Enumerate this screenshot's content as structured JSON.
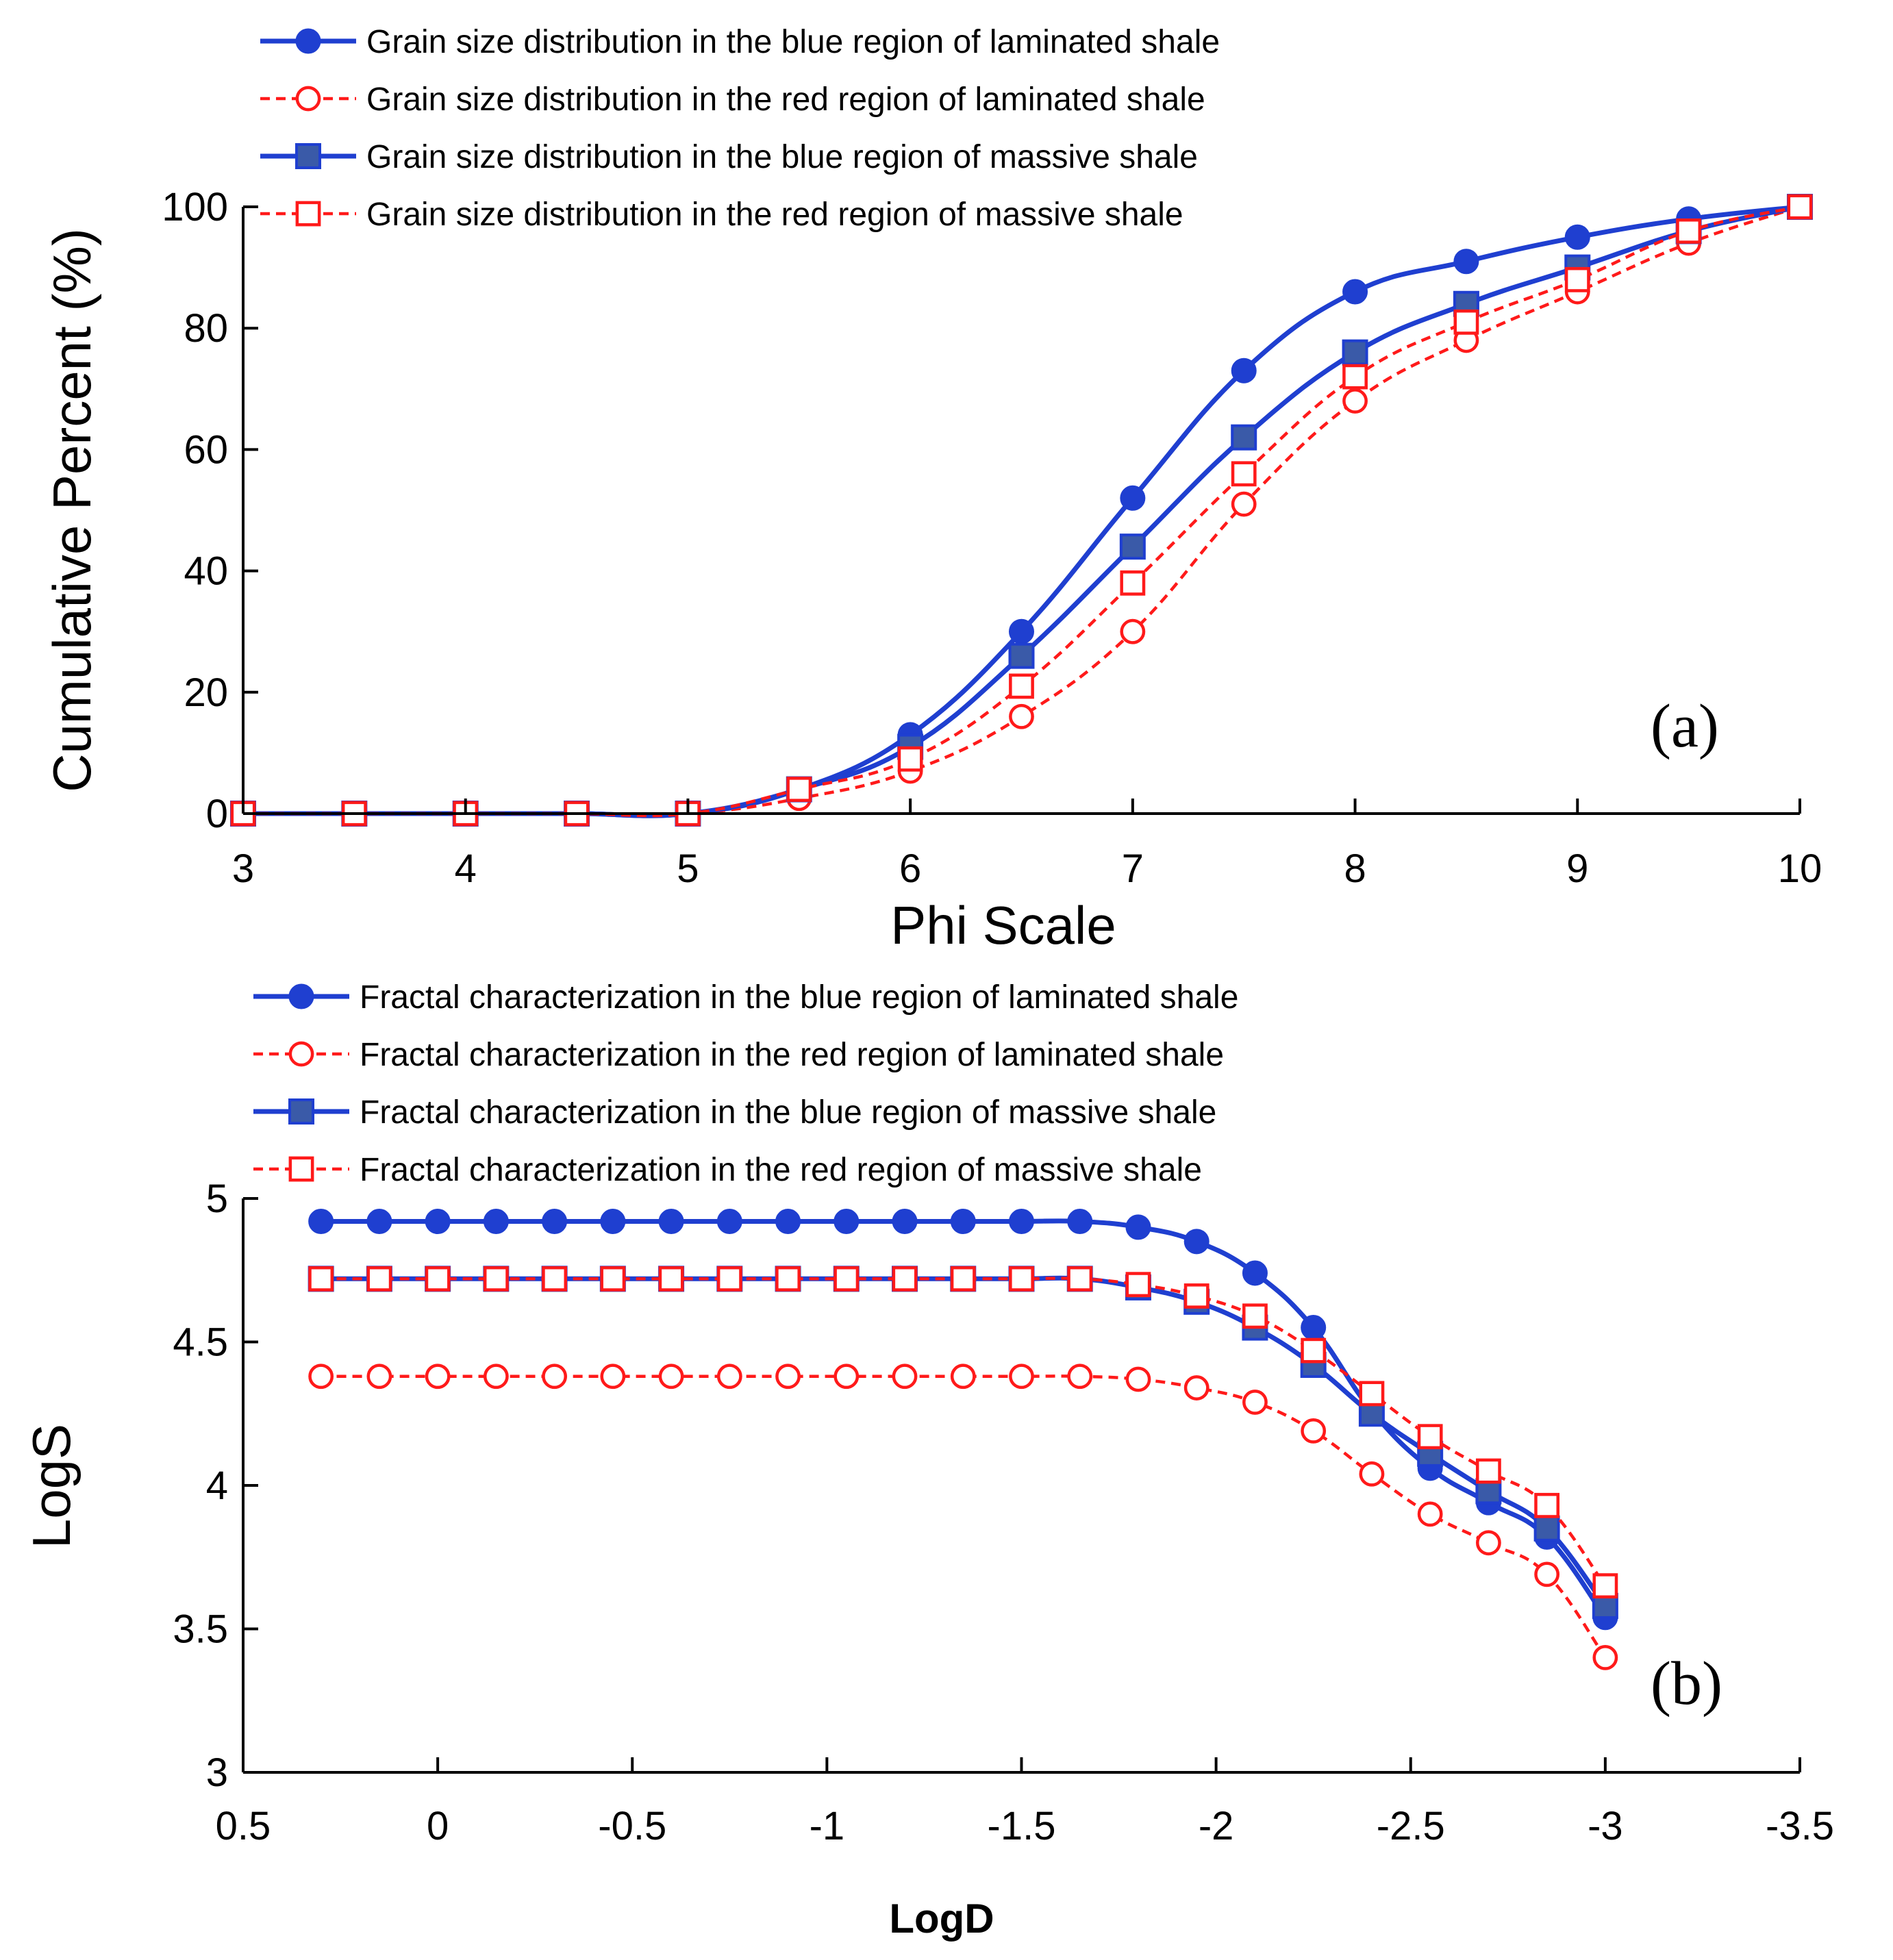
{
  "chart_data": [
    {
      "type": "line",
      "panel_label": "(a)",
      "xlabel": "Phi Scale",
      "ylabel": "Cumulative Percent (%)",
      "xlim": [
        3,
        10
      ],
      "ylim": [
        0,
        100
      ],
      "xticks": [
        "3",
        "4",
        "5",
        "6",
        "7",
        "8",
        "9",
        "10"
      ],
      "yticks": [
        "0",
        "20",
        "40",
        "60",
        "80",
        "100"
      ],
      "x": [
        3,
        3.5,
        4,
        4.5,
        5,
        5.5,
        6,
        6.5,
        7,
        7.5,
        8,
        8.5,
        9,
        9.5,
        10
      ],
      "series": [
        {
          "name": "Grain size distribution in the blue region of laminated shale",
          "color": "#1f3fd0",
          "dash": "solid",
          "marker": "filled-circle",
          "values": [
            0,
            0,
            0,
            0,
            0,
            4,
            13,
            30,
            52,
            73,
            86,
            91,
            95,
            98,
            100
          ]
        },
        {
          "name": "Grain size distribution in the red region of laminated shale",
          "color": "#ff1a1a",
          "dash": "dashed",
          "marker": "open-circle",
          "values": [
            0,
            0,
            0,
            0,
            0,
            2.5,
            7,
            16,
            30,
            51,
            68,
            78,
            86,
            94,
            100
          ]
        },
        {
          "name": "Grain size distribution in the blue region of massive shale",
          "color": "#1f3fd0",
          "dash": "solid",
          "marker": "filled-square",
          "values": [
            0,
            0,
            0,
            0,
            0,
            4,
            11,
            26,
            44,
            62,
            76,
            84,
            90,
            96,
            100
          ]
        },
        {
          "name": "Grain size distribution in the red region of massive shale",
          "color": "#ff1a1a",
          "dash": "dashed",
          "marker": "open-square",
          "values": [
            0,
            0,
            0,
            0,
            0,
            4,
            9,
            21,
            38,
            56,
            72,
            81,
            88,
            96,
            100
          ]
        }
      ],
      "legend_position": "top-left"
    },
    {
      "type": "line",
      "panel_label": "(b)",
      "xlabel": "LogD",
      "ylabel": "LogS",
      "xlim": [
        0.5,
        -3.5
      ],
      "ylim": [
        3,
        5
      ],
      "xticks": [
        "0.5",
        "0",
        "-0.5",
        "-1",
        "-1.5",
        "-2",
        "-2.5",
        "-3",
        "-3.5"
      ],
      "yticks": [
        "3",
        "3.5",
        "4",
        "4.5",
        "5"
      ],
      "x": [
        0.3,
        0.15,
        0,
        -0.15,
        -0.3,
        -0.45,
        -0.6,
        -0.75,
        -0.9,
        -1.05,
        -1.2,
        -1.35,
        -1.5,
        -1.65,
        -1.8,
        -1.95,
        -2.1,
        -2.25,
        -2.4,
        -2.55,
        -2.7,
        -2.85,
        -3.0
      ],
      "series": [
        {
          "name": "Fractal characterization in the blue region of laminated shale",
          "color": "#1f3fd0",
          "dash": "solid",
          "marker": "filled-circle",
          "values": [
            4.92,
            4.92,
            4.92,
            4.92,
            4.92,
            4.92,
            4.92,
            4.92,
            4.92,
            4.92,
            4.92,
            4.92,
            4.92,
            4.92,
            4.9,
            4.85,
            4.74,
            4.55,
            4.26,
            4.06,
            3.94,
            3.82,
            3.54
          ]
        },
        {
          "name": "Fractal characterization in the red region of laminated shale",
          "color": "#ff1a1a",
          "dash": "dashed",
          "marker": "open-circle",
          "values": [
            4.38,
            4.38,
            4.38,
            4.38,
            4.38,
            4.38,
            4.38,
            4.38,
            4.38,
            4.38,
            4.38,
            4.38,
            4.38,
            4.38,
            4.37,
            4.34,
            4.29,
            4.19,
            4.04,
            3.9,
            3.8,
            3.69,
            3.4
          ]
        },
        {
          "name": "Fractal characterization in the blue region of massive shale",
          "color": "#1f3fd0",
          "dash": "solid",
          "marker": "filled-square",
          "values": [
            4.72,
            4.72,
            4.72,
            4.72,
            4.72,
            4.72,
            4.72,
            4.72,
            4.72,
            4.72,
            4.72,
            4.72,
            4.72,
            4.72,
            4.69,
            4.64,
            4.55,
            4.42,
            4.25,
            4.11,
            3.98,
            3.85,
            3.58
          ]
        },
        {
          "name": "Fractal characterization in the red region of massive shale",
          "color": "#ff1a1a",
          "dash": "dashed",
          "marker": "open-square",
          "values": [
            4.72,
            4.72,
            4.72,
            4.72,
            4.72,
            4.72,
            4.72,
            4.72,
            4.72,
            4.72,
            4.72,
            4.72,
            4.72,
            4.72,
            4.7,
            4.66,
            4.59,
            4.47,
            4.32,
            4.17,
            4.05,
            3.93,
            3.65
          ]
        }
      ],
      "legend_position": "top-left"
    }
  ]
}
